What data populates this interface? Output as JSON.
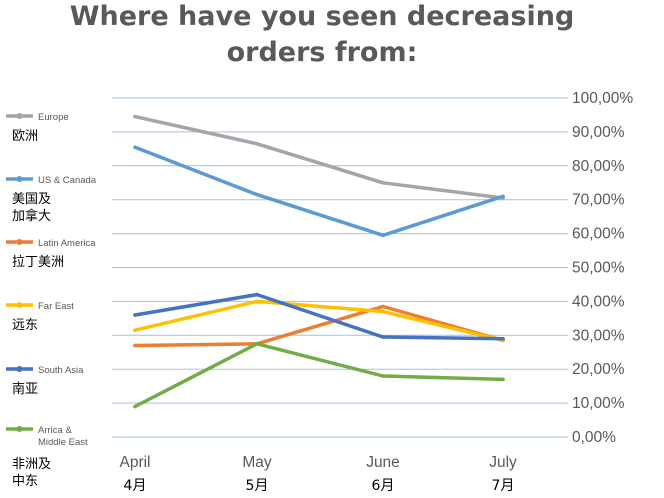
{
  "chart_data": {
    "type": "line",
    "title": "Where have you seen decreasing orders from:",
    "title_lines": [
      "Where have you seen decreasing",
      "orders from:"
    ],
    "categories": [
      {
        "en": "April",
        "cn": "4月"
      },
      {
        "en": "May",
        "cn": "5月"
      },
      {
        "en": "June",
        "cn": "6月"
      },
      {
        "en": "July",
        "cn": "7月"
      }
    ],
    "ylim": [
      0,
      100
    ],
    "y_ticks": [
      "0,00%",
      "10,00%",
      "20,00%",
      "30,00%",
      "40,00%",
      "50,00%",
      "60,00%",
      "70,00%",
      "80,00%",
      "90,00%",
      "100,00%"
    ],
    "y_axis_side": "right",
    "grid": true,
    "legend_position": "left",
    "series": [
      {
        "name": "Europe",
        "name_cn": "欧洲",
        "color": "#A5A5A5",
        "values": [
          94.5,
          86.5,
          75,
          70.5
        ]
      },
      {
        "name": "US & Canada",
        "name_cn": "美国及\n加拿大",
        "color": "#5B9BD5",
        "values": [
          85.5,
          71.5,
          59.5,
          71
        ]
      },
      {
        "name": "Latin America",
        "name_cn": "拉丁美洲",
        "color": "#ED7D31",
        "values": [
          27,
          27.5,
          38.5,
          28.5
        ]
      },
      {
        "name": "Far East",
        "name_cn": "远东",
        "color": "#FFC000",
        "values": [
          31.5,
          40,
          37,
          28.5
        ]
      },
      {
        "name": "South Asia",
        "name_cn": "南亚",
        "color": "#4472C4",
        "values": [
          36,
          42,
          29.5,
          29
        ]
      },
      {
        "name": "Arrica & Middle East",
        "name_cn": "非洲及\n中东",
        "color": "#70AD47",
        "values": [
          9,
          27.5,
          18,
          17
        ]
      }
    ]
  }
}
